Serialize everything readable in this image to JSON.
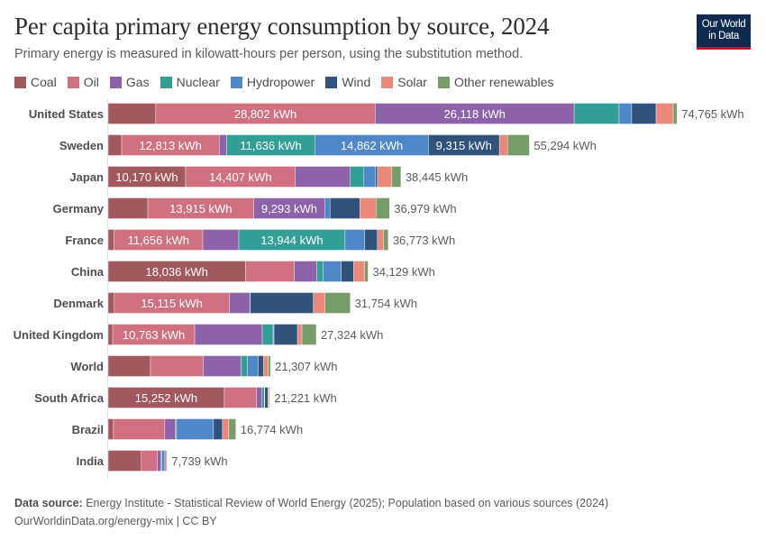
{
  "title": "Per capita primary energy consumption by source, 2024",
  "subtitle": "Primary energy is measured in kilowatt-hours per person, using the substitution method.",
  "logo": {
    "line1": "Our World",
    "line2": "in Data"
  },
  "footer": {
    "source_label": "Data source:",
    "source_text": "Energy Institute - Statistical Review of World Energy (2025); Population based on various sources (2024)",
    "url_line": "OurWorldinData.org/energy-mix | CC BY"
  },
  "chart_data": {
    "type": "bar",
    "orientation": "horizontal",
    "stacked": true,
    "unit": "kWh",
    "legend_position": "top",
    "grid": false,
    "xlim": [
      0,
      75000
    ],
    "categories": [
      "United States",
      "Sweden",
      "Japan",
      "Germany",
      "France",
      "China",
      "Denmark",
      "United Kingdom",
      "World",
      "South Africa",
      "Brazil",
      "India"
    ],
    "totals": [
      74765,
      55294,
      38445,
      36979,
      36773,
      34129,
      31754,
      27324,
      21307,
      21221,
      16774,
      7739
    ],
    "total_labels": [
      "74,765 kWh",
      "55,294 kWh",
      "38,445 kWh",
      "36,979 kWh",
      "36,773 kWh",
      "34,129 kWh",
      "31,754 kWh",
      "27,324 kWh",
      "21,307 kWh",
      "21,221 kWh",
      "16,774 kWh",
      "7,739 kWh"
    ],
    "series": [
      {
        "name": "Coal",
        "color": "#a2585f",
        "values": [
          6250,
          1780,
          10170,
          5210,
          770,
          18036,
          800,
          600,
          5560,
          15252,
          700,
          4340
        ]
      },
      {
        "name": "Oil",
        "color": "#cf7180",
        "values": [
          28802,
          12813,
          14407,
          13915,
          11656,
          6390,
          15115,
          10763,
          6917,
          4240,
          6740,
          2130
        ]
      },
      {
        "name": "Gas",
        "color": "#8c62a8",
        "values": [
          26118,
          950,
          7220,
          9293,
          4730,
          2960,
          2720,
          8870,
          4970,
          710,
          1420,
          470
        ]
      },
      {
        "name": "Nuclear",
        "color": "#329e96",
        "values": [
          5900,
          11636,
          1780,
          0,
          13944,
          830,
          0,
          1420,
          830,
          300,
          120,
          100
        ]
      },
      {
        "name": "Hydropower",
        "color": "#5087c8",
        "values": [
          1660,
          14862,
          1540,
          710,
          2600,
          2370,
          20,
          120,
          1420,
          60,
          4850,
          350
        ]
      },
      {
        "name": "Wind",
        "color": "#30527b",
        "values": [
          3200,
          9315,
          240,
          3900,
          1650,
          1650,
          8280,
          3080,
          710,
          400,
          1180,
          150
        ]
      },
      {
        "name": "Solar",
        "color": "#e8897b",
        "values": [
          2250,
          1070,
          1890,
          2130,
          830,
          1420,
          1540,
          590,
          600,
          200,
          830,
          150
        ]
      },
      {
        "name": "Other renewables",
        "color": "#779c69",
        "values": [
          500,
          2870,
          1180,
          1780,
          590,
          470,
          3300,
          1880,
          300,
          60,
          934,
          50
        ]
      }
    ],
    "segment_labels": [
      {
        "row": 0,
        "series": 1,
        "text": "28,802 kWh"
      },
      {
        "row": 0,
        "series": 2,
        "text": "26,118 kWh"
      },
      {
        "row": 1,
        "series": 1,
        "text": "12,813 kWh"
      },
      {
        "row": 1,
        "series": 3,
        "text": "11,636 kWh"
      },
      {
        "row": 1,
        "series": 4,
        "text": "14,862 kWh"
      },
      {
        "row": 1,
        "series": 5,
        "text": "9,315 kWh"
      },
      {
        "row": 2,
        "series": 0,
        "text": "10,170 kWh"
      },
      {
        "row": 2,
        "series": 1,
        "text": "14,407 kWh"
      },
      {
        "row": 3,
        "series": 1,
        "text": "13,915 kWh"
      },
      {
        "row": 3,
        "series": 2,
        "text": "9,293 kWh"
      },
      {
        "row": 4,
        "series": 1,
        "text": "11,656 kWh"
      },
      {
        "row": 4,
        "series": 3,
        "text": "13,944 kWh"
      },
      {
        "row": 5,
        "series": 0,
        "text": "18,036 kWh"
      },
      {
        "row": 6,
        "series": 1,
        "text": "15,115 kWh"
      },
      {
        "row": 7,
        "series": 1,
        "text": "10,763 kWh"
      },
      {
        "row": 9,
        "series": 0,
        "text": "15,252 kWh"
      }
    ]
  }
}
